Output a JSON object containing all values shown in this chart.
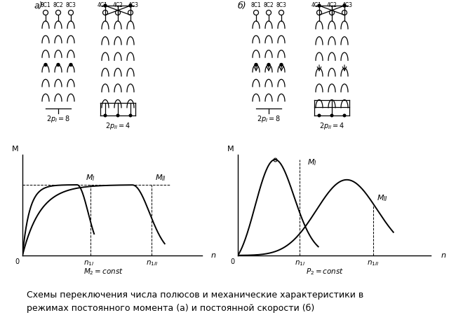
{
  "bg_color": "#ffffff",
  "fig_width": 6.4,
  "fig_height": 4.8,
  "caption": "Схемы переключения числа полюсов и механические характеристики в\nрежимах постоянного момента (а) и постоянной скорости (б)",
  "label_a": "а)",
  "label_b": "б)",
  "lc": "#000000"
}
